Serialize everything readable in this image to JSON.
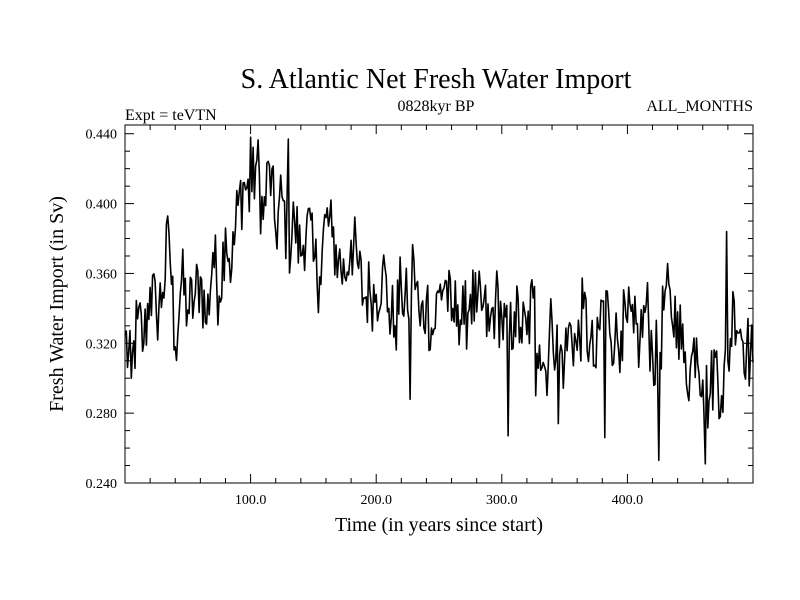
{
  "chart_data": {
    "type": "line",
    "title": "S. Atlantic Net Fresh Water Import",
    "subtitle_left": "Expt = teVTN",
    "subtitle_center": "0828kyr BP",
    "subtitle_right": "ALL_MONTHS",
    "xlabel": "Time (in years since start)",
    "ylabel": "Fresh Water Import (in Sv)",
    "xlim": [
      0,
      500
    ],
    "ylim": [
      0.24,
      0.445
    ],
    "xticks": [
      100,
      200,
      300,
      400
    ],
    "xtick_labels": [
      "100.0",
      "200.0",
      "300.0",
      "400.0"
    ],
    "yticks": [
      0.24,
      0.28,
      0.32,
      0.36,
      0.4,
      0.44
    ],
    "ytick_labels": [
      "0.240",
      "0.280",
      "0.320",
      "0.360",
      "0.400",
      "0.440"
    ],
    "series": [
      {
        "name": "fresh water import",
        "x_start": 0,
        "x_step": 5,
        "values": [
          0.325,
          0.3,
          0.334,
          0.32,
          0.352,
          0.337,
          0.349,
          0.383,
          0.318,
          0.356,
          0.339,
          0.344,
          0.358,
          0.331,
          0.372,
          0.347,
          0.386,
          0.363,
          0.399,
          0.412,
          0.403,
          0.425,
          0.391,
          0.422,
          0.384,
          0.404,
          0.376,
          0.39,
          0.37,
          0.393,
          0.367,
          0.358,
          0.392,
          0.381,
          0.368,
          0.358,
          0.379,
          0.366,
          0.346,
          0.35,
          0.348,
          0.363,
          0.34,
          0.33,
          0.352,
          0.339,
          0.368,
          0.33,
          0.345,
          0.325,
          0.349,
          0.356,
          0.333,
          0.342,
          0.331,
          0.348,
          0.338,
          0.341,
          0.327,
          0.345,
          0.335,
          0.318,
          0.338,
          0.329,
          0.325,
          0.346,
          0.319,
          0.304,
          0.333,
          0.314,
          0.311,
          0.33,
          0.316,
          0.34,
          0.319,
          0.306,
          0.344,
          0.339,
          0.32,
          0.327,
          0.332,
          0.326,
          0.322,
          0.342,
          0.314,
          0.309,
          0.35,
          0.335,
          0.338,
          0.309,
          0.305,
          0.323,
          0.299,
          0.287,
          0.312,
          0.29,
          0.31,
          0.344,
          0.328,
          0.318,
          0.309
        ],
        "extremes": [
          {
            "x": 100,
            "y": 0.438
          },
          {
            "x": 130,
            "y": 0.437
          },
          {
            "x": 227,
            "y": 0.288
          },
          {
            "x": 305,
            "y": 0.267
          },
          {
            "x": 327,
            "y": 0.29
          },
          {
            "x": 345,
            "y": 0.274
          },
          {
            "x": 382,
            "y": 0.266
          },
          {
            "x": 425,
            "y": 0.253
          },
          {
            "x": 462,
            "y": 0.251
          },
          {
            "x": 479,
            "y": 0.384
          }
        ]
      }
    ]
  }
}
